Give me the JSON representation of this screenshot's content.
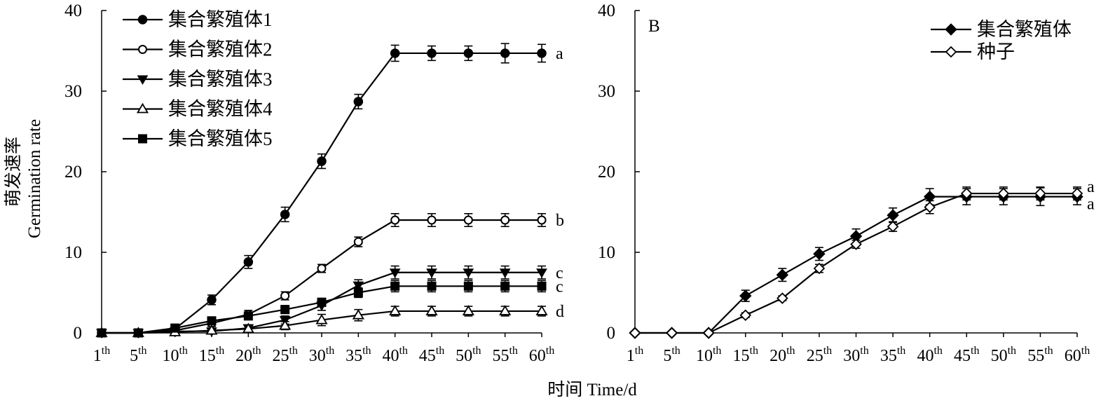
{
  "figure": {
    "xlabel": "时间 Time/d",
    "ylabel_zh": "萌发速率",
    "ylabel_en": "Germination rate",
    "tick_suffix": "th"
  },
  "chart_data": [
    {
      "type": "line",
      "panel_label": "",
      "categories": [
        "1",
        "5",
        "10",
        "15",
        "20",
        "25",
        "30",
        "35",
        "40",
        "45",
        "50",
        "55",
        "60"
      ],
      "ylim": [
        0,
        40
      ],
      "yticks": [
        0,
        10,
        20,
        30,
        40
      ],
      "grid": false,
      "legend_position": "top-left",
      "series": [
        {
          "name": "集合繁殖体1",
          "marker": "circle-filled",
          "values": [
            0,
            0,
            0.5,
            4.1,
            8.8,
            14.7,
            21.3,
            28.7,
            34.7,
            34.7,
            34.7,
            34.7,
            34.7
          ],
          "errors": [
            0,
            0,
            0.3,
            0.6,
            0.8,
            0.9,
            0.9,
            0.9,
            1.0,
            0.9,
            0.9,
            1.2,
            1.1
          ],
          "group_label": "a"
        },
        {
          "name": "集合繁殖体2",
          "marker": "circle-open",
          "values": [
            0,
            0,
            0.3,
            1.2,
            2.3,
            4.6,
            8.0,
            11.3,
            14.0,
            14.0,
            14.0,
            14.0,
            14.0
          ],
          "errors": [
            0,
            0,
            0.2,
            0.4,
            0.5,
            0.5,
            0.5,
            0.6,
            0.8,
            0.8,
            0.8,
            0.8,
            0.8
          ],
          "group_label": "b"
        },
        {
          "name": "集合繁殖体3",
          "marker": "triangle-down-filled",
          "values": [
            0,
            0,
            0.2,
            0.2,
            0.6,
            1.6,
            3.4,
            5.9,
            7.5,
            7.5,
            7.5,
            7.5,
            7.5
          ],
          "errors": [
            0,
            0,
            0.2,
            0.3,
            0.4,
            0.5,
            0.6,
            0.7,
            0.8,
            0.8,
            0.8,
            0.8,
            0.8
          ],
          "group_label": "c"
        },
        {
          "name": "集合繁殖体4",
          "marker": "triangle-up-open",
          "values": [
            0,
            0,
            0.1,
            0.3,
            0.5,
            0.9,
            1.6,
            2.2,
            2.7,
            2.7,
            2.7,
            2.7,
            2.7
          ],
          "errors": [
            0,
            0,
            0.1,
            0.3,
            0.4,
            0.5,
            0.7,
            0.7,
            0.6,
            0.6,
            0.6,
            0.6,
            0.6
          ],
          "group_label": "d"
        },
        {
          "name": "集合繁殖体5",
          "marker": "square-filled",
          "values": [
            0,
            0,
            0.6,
            1.5,
            2.1,
            2.9,
            3.8,
            5.0,
            5.8,
            5.8,
            5.8,
            5.8,
            5.8
          ],
          "errors": [
            0,
            0,
            0.2,
            0.4,
            0.4,
            0.5,
            0.5,
            0.6,
            0.7,
            0.7,
            0.7,
            0.7,
            0.7
          ],
          "group_label": "c"
        }
      ]
    },
    {
      "type": "line",
      "panel_label": "B",
      "categories": [
        "1",
        "5",
        "10",
        "15",
        "20",
        "25",
        "30",
        "35",
        "40",
        "45",
        "50",
        "55",
        "60"
      ],
      "ylim": [
        0,
        40
      ],
      "yticks": [
        0,
        10,
        20,
        30,
        40
      ],
      "grid": false,
      "legend_position": "top-right",
      "series": [
        {
          "name": "集合繁殖体",
          "marker": "diamond-filled",
          "values": [
            0,
            0,
            0,
            4.6,
            7.2,
            9.8,
            12.0,
            14.6,
            16.9,
            16.9,
            16.9,
            16.9,
            16.9
          ],
          "errors": [
            0,
            0,
            0,
            0.7,
            0.8,
            0.8,
            0.9,
            0.9,
            1.0,
            1.0,
            1.0,
            1.1,
            1.0
          ],
          "group_label": "a"
        },
        {
          "name": "种子",
          "marker": "diamond-open",
          "values": [
            0,
            0,
            0,
            2.2,
            4.3,
            8.0,
            11.0,
            13.2,
            15.6,
            17.3,
            17.3,
            17.3,
            17.3
          ],
          "errors": [
            0,
            0,
            0,
            0.3,
            0.3,
            0.5,
            0.5,
            0.6,
            0.8,
            0.8,
            0.8,
            0.8,
            0.8
          ],
          "group_label": "a"
        }
      ]
    }
  ]
}
